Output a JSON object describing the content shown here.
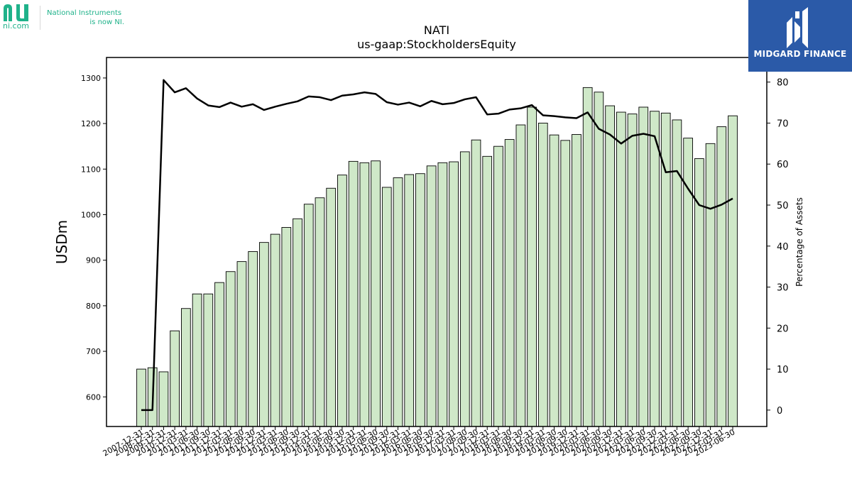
{
  "branding": {
    "site": "ni.com",
    "note_line1": "National Instruments",
    "note_line2": "is now NI.",
    "watermark": "MIDGARD FINANCE",
    "accent_green": "#1fb28a",
    "badge_blue": "#2b5aa8"
  },
  "chart_data": {
    "type": "bar",
    "title": "NATI",
    "subtitle": "us-gaap:StockholdersEquity",
    "ylabel": "USDm",
    "y2label": "Percentage of Assets",
    "ylim": [
      535,
      1345
    ],
    "y2lim": [
      -4,
      86
    ],
    "yticks": [
      600,
      700,
      800,
      900,
      1000,
      1100,
      1200,
      1300
    ],
    "y2ticks": [
      0,
      10,
      20,
      30,
      40,
      50,
      60,
      70,
      80
    ],
    "bar_color": "#cfe8c8",
    "line_color": "#000000",
    "grid": false,
    "categories": [
      "2007-12-31",
      "2008-12-31",
      "2009-12-31",
      "2010-12-31",
      "2011-03-31",
      "2011-06-30",
      "2011-09-30",
      "2011-12-31",
      "2012-03-31",
      "2012-06-30",
      "2012-09-30",
      "2012-12-31",
      "2013-03-31",
      "2013-06-30",
      "2013-09-30",
      "2013-12-31",
      "2014-03-31",
      "2014-06-30",
      "2014-09-30",
      "2014-12-31",
      "2015-03-31",
      "2015-06-30",
      "2015-09-30",
      "2015-12-31",
      "2016-03-31",
      "2016-06-30",
      "2016-09-30",
      "2016-12-31",
      "2017-03-31",
      "2017-06-30",
      "2017-09-30",
      "2017-12-31",
      "2018-03-31",
      "2018-06-30",
      "2018-09-30",
      "2018-12-31",
      "2019-03-31",
      "2019-06-30",
      "2019-09-30",
      "2019-12-31",
      "2020-03-31",
      "2020-06-30",
      "2020-09-30",
      "2020-12-31",
      "2021-03-31",
      "2021-06-30",
      "2021-09-30",
      "2021-12-31",
      "2022-03-31",
      "2022-06-30",
      "2022-09-30",
      "2022-12-31",
      "2023-03-31",
      "2023-06-30"
    ],
    "series": [
      {
        "kind": "bar",
        "axis": "left",
        "values": [
          661,
          664,
          655,
          745,
          794,
          826,
          826,
          851,
          875,
          897,
          919,
          939,
          957,
          972,
          991,
          1023,
          1037,
          1058,
          1087,
          1117,
          1114,
          1118,
          1060,
          1081,
          1088,
          1090,
          1107,
          1114,
          1116,
          1138,
          1164,
          1128,
          1150,
          1165,
          1197,
          1236,
          1201,
          1175,
          1163,
          1176,
          1279,
          1269,
          1239,
          1225,
          1221,
          1236,
          1227,
          1223,
          1208,
          1168,
          1123,
          1156,
          1193,
          1217
        ]
      },
      {
        "kind": "line",
        "axis": "right",
        "values": [
          0,
          0,
          80.5,
          77.5,
          78.5,
          76,
          74.3,
          73.9,
          75,
          74,
          74.6,
          73.2,
          74,
          74.7,
          75.3,
          76.5,
          76.3,
          75.6,
          76.7,
          77,
          77.5,
          77.1,
          75.1,
          74.5,
          75,
          74.1,
          75.4,
          74.6,
          74.9,
          75.8,
          76.3,
          72.1,
          72.3,
          73.3,
          73.6,
          74.4,
          71.9,
          71.7,
          71.4,
          71.2,
          72.6,
          68.6,
          67.2,
          65,
          66.9,
          67.4,
          66.8,
          58,
          58.3,
          54,
          50,
          49.1,
          50.1,
          51.6
        ]
      }
    ]
  }
}
